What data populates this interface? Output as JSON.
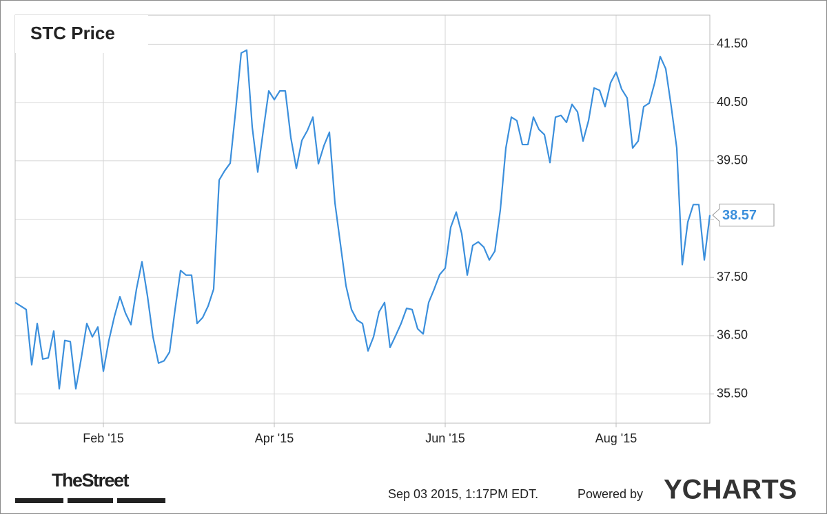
{
  "chart_data": {
    "type": "line",
    "title": "STC Price",
    "categories": [
      null,
      null,
      null,
      null,
      null,
      null,
      null,
      null,
      null,
      null,
      null,
      null,
      null,
      null,
      null,
      null,
      "Feb '15",
      null,
      null,
      null,
      null,
      null,
      null,
      null,
      null,
      null,
      null,
      null,
      null,
      null,
      null,
      null,
      null,
      null,
      null,
      null,
      null,
      null,
      null,
      null,
      null,
      null,
      null,
      null,
      null,
      null,
      null,
      "Apr '15",
      null,
      null,
      null,
      null,
      null,
      null,
      null,
      null,
      null,
      null,
      null,
      null,
      null,
      null,
      null,
      null,
      null,
      null,
      null,
      null,
      null,
      null,
      null,
      null,
      null,
      null,
      null,
      null,
      null,
      null,
      "Jun '15",
      null,
      null,
      null,
      null,
      null,
      null,
      null,
      null,
      null,
      null,
      null,
      null,
      null,
      null,
      null,
      null,
      null,
      null,
      null,
      null,
      null,
      null,
      null,
      null,
      null,
      null,
      null,
      null,
      null,
      null,
      "Aug '15",
      null,
      null,
      null,
      null,
      null,
      null,
      null,
      null,
      null,
      null,
      null,
      null,
      null,
      null,
      null,
      null,
      null
    ],
    "series": [
      {
        "name": "STC Price",
        "color": "#3b8fdc",
        "values": [
          37.07,
          37.01,
          36.95,
          36.0,
          36.71,
          36.1,
          36.12,
          36.58,
          35.59,
          36.42,
          36.4,
          35.59,
          36.12,
          36.71,
          36.48,
          36.65,
          35.89,
          36.42,
          36.83,
          37.17,
          36.89,
          36.69,
          37.3,
          37.77,
          37.18,
          36.48,
          36.03,
          36.07,
          36.22,
          36.95,
          37.62,
          37.54,
          37.54,
          36.71,
          36.81,
          37.01,
          37.3,
          39.17,
          39.33,
          39.46,
          40.37,
          41.35,
          41.4,
          40.08,
          39.31,
          40.02,
          40.7,
          40.55,
          40.7,
          40.7,
          39.9,
          39.37,
          39.85,
          40.02,
          40.25,
          39.45,
          39.76,
          39.99,
          38.78,
          38.07,
          37.36,
          36.95,
          36.77,
          36.71,
          36.24,
          36.48,
          36.91,
          37.07,
          36.3,
          36.5,
          36.71,
          36.97,
          36.95,
          36.62,
          36.53,
          37.07,
          37.3,
          37.55,
          37.66,
          38.36,
          38.62,
          38.25,
          37.54,
          38.05,
          38.11,
          38.02,
          37.8,
          37.95,
          38.66,
          39.72,
          40.25,
          40.19,
          39.78,
          39.78,
          40.25,
          40.04,
          39.95,
          39.47,
          40.25,
          40.28,
          40.16,
          40.47,
          40.34,
          39.84,
          40.19,
          40.75,
          40.71,
          40.43,
          40.84,
          41.02,
          40.73,
          40.58,
          39.72,
          39.84,
          40.43,
          40.49,
          40.84,
          41.29,
          41.08,
          40.43,
          39.72,
          37.72,
          38.45,
          38.75,
          38.75,
          37.8,
          38.57
        ]
      }
    ],
    "ylim": [
      35,
      42
    ],
    "yticks": [
      {
        "value": 35.5,
        "label": "35.50"
      },
      {
        "value": 36.5,
        "label": "36.50"
      },
      {
        "value": 37.5,
        "label": "37.50"
      },
      {
        "value": 38.5,
        "label": null
      },
      {
        "value": 39.5,
        "label": "39.50"
      },
      {
        "value": 40.5,
        "label": "40.50"
      },
      {
        "value": 41.5,
        "label": "41.50"
      }
    ],
    "grid": true,
    "publisher": "TheStreet",
    "timestamp": "Sep 03 2015, 1:17PM EDT.",
    "credit": "Powered by",
    "logo": "YCHARTS"
  }
}
